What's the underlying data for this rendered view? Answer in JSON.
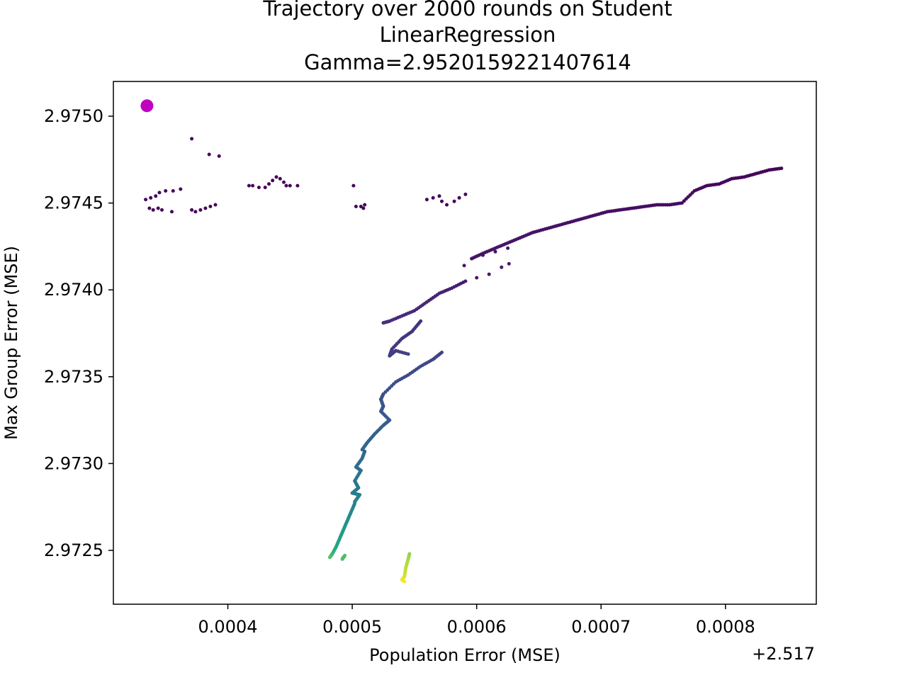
{
  "chart_data": {
    "type": "scatter",
    "title_lines": [
      "Trajectory over 2000 rounds on Student",
      "LinearRegression",
      "Gamma=2.9520159221407614"
    ],
    "xlabel": "Population Error (MSE)",
    "ylabel": "Max Group Error (MSE)",
    "x_offset_label": "+2.517",
    "x_offset": 2.517,
    "x_ticks": [
      0.0004,
      0.0005,
      0.0006,
      0.0007,
      0.0008
    ],
    "x_tick_labels": [
      "0.0004",
      "0.0005",
      "0.0006",
      "0.0007",
      "0.0008"
    ],
    "y_ticks": [
      2.9725,
      2.973,
      2.9735,
      2.974,
      2.9745,
      2.975
    ],
    "y_tick_labels": [
      "2.9725",
      "2.9730",
      "2.9735",
      "2.9740",
      "2.9745",
      "2.9750"
    ],
    "xlim": [
      0.000308,
      0.000873
    ],
    "ylim": [
      2.97219,
      2.9752
    ],
    "x_values_note": "x values are offsets from +2.517 as shown on the axis",
    "start_point": {
      "x": 0.000335,
      "y": 2.97506,
      "color": "#bf00bf"
    },
    "colormap": "viridis",
    "grid": false,
    "legend": "none",
    "segments": [
      {
        "points": [
          [
            0.000334,
            2.97452
          ],
          [
            0.000338,
            2.97453
          ],
          [
            0.000342,
            2.97454
          ],
          [
            0.000345,
            2.97456
          ],
          [
            0.00035,
            2.97457
          ],
          [
            0.000356,
            2.97457
          ],
          [
            0.000362,
            2.97458
          ]
        ],
        "t": [
          0.02,
          0.02
        ]
      },
      {
        "points": [
          [
            0.000337,
            2.97447
          ],
          [
            0.00034,
            2.97446
          ],
          [
            0.000344,
            2.97447
          ],
          [
            0.000347,
            2.97446
          ],
          [
            0.000355,
            2.97445
          ]
        ],
        "t": [
          0.02,
          0.02
        ]
      },
      {
        "points": [
          [
            0.000385,
            2.97478
          ],
          [
            0.000393,
            2.97477
          ],
          [
            0.000371,
            2.97487
          ]
        ],
        "t": [
          0.02,
          0.02
        ]
      },
      {
        "points": [
          [
            0.000371,
            2.97446
          ],
          [
            0.000374,
            2.97445
          ],
          [
            0.000378,
            2.97446
          ],
          [
            0.000382,
            2.97447
          ],
          [
            0.000386,
            2.97448
          ],
          [
            0.00039,
            2.97449
          ]
        ],
        "t": [
          0.02,
          0.02
        ]
      },
      {
        "points": [
          [
            0.000417,
            2.9746
          ],
          [
            0.00042,
            2.9746
          ],
          [
            0.000425,
            2.97459
          ],
          [
            0.00043,
            2.97459
          ],
          [
            0.000433,
            2.97461
          ],
          [
            0.000436,
            2.97463
          ],
          [
            0.000439,
            2.97465
          ],
          [
            0.000442,
            2.97464
          ],
          [
            0.000445,
            2.97462
          ],
          [
            0.000447,
            2.9746
          ],
          [
            0.00045,
            2.9746
          ],
          [
            0.000456,
            2.9746
          ]
        ],
        "t": [
          0.02,
          0.02
        ]
      },
      {
        "points": [
          [
            0.000501,
            2.9746
          ],
          [
            0.000503,
            2.97448
          ],
          [
            0.000507,
            2.97448
          ],
          [
            0.000509,
            2.97447
          ],
          [
            0.00051,
            2.97449
          ]
        ],
        "t": [
          0.02,
          0.02
        ]
      },
      {
        "points": [
          [
            0.00056,
            2.97452
          ],
          [
            0.000565,
            2.97453
          ],
          [
            0.00057,
            2.97454
          ],
          [
            0.000572,
            2.97451
          ],
          [
            0.000576,
            2.97449
          ],
          [
            0.000582,
            2.97451
          ],
          [
            0.000586,
            2.97453
          ],
          [
            0.000591,
            2.97455
          ]
        ],
        "t": [
          0.02,
          0.02
        ]
      },
      {
        "points": [
          [
            0.000845,
            2.9747
          ],
          [
            0.000835,
            2.97469
          ],
          [
            0.000825,
            2.97467
          ],
          [
            0.000815,
            2.97465
          ],
          [
            0.000805,
            2.97464
          ],
          [
            0.000795,
            2.97461
          ],
          [
            0.000785,
            2.9746
          ],
          [
            0.000775,
            2.97457
          ],
          [
            0.000765,
            2.9745
          ],
          [
            0.000755,
            2.97449
          ],
          [
            0.000745,
            2.97449
          ],
          [
            0.000735,
            2.97448
          ],
          [
            0.000725,
            2.97447
          ],
          [
            0.000715,
            2.97446
          ],
          [
            0.000705,
            2.97445
          ],
          [
            0.000695,
            2.97443
          ],
          [
            0.000685,
            2.97441
          ],
          [
            0.000675,
            2.97439
          ],
          [
            0.000665,
            2.97437
          ],
          [
            0.000655,
            2.97435
          ],
          [
            0.000645,
            2.97433
          ],
          [
            0.000635,
            2.9743
          ],
          [
            0.000625,
            2.97427
          ],
          [
            0.000615,
            2.97424
          ],
          [
            0.000605,
            2.97421
          ],
          [
            0.000596,
            2.97418
          ]
        ],
        "t": [
          0.02,
          0.08
        ]
      },
      {
        "points": [
          [
            0.000596,
            2.97418
          ],
          [
            0.000605,
            2.9742
          ],
          [
            0.000615,
            2.97422
          ],
          [
            0.000625,
            2.97424
          ]
        ],
        "t": [
          0.06,
          0.08
        ]
      },
      {
        "points": [
          [
            0.00059,
            2.97414
          ],
          [
            0.0006,
            2.97407
          ],
          [
            0.00061,
            2.97409
          ],
          [
            0.00062,
            2.97413
          ],
          [
            0.000626,
            2.97415
          ]
        ],
        "t": [
          0.08,
          0.1
        ]
      },
      {
        "points": [
          [
            0.000591,
            2.97405
          ],
          [
            0.00058,
            2.97401
          ],
          [
            0.00057,
            2.97398
          ],
          [
            0.00056,
            2.97393
          ],
          [
            0.00055,
            2.97388
          ],
          [
            0.00054,
            2.97385
          ],
          [
            0.00053,
            2.97382
          ],
          [
            0.000525,
            2.97381
          ]
        ],
        "t": [
          0.1,
          0.18
        ]
      },
      {
        "points": [
          [
            0.000555,
            2.97382
          ],
          [
            0.000548,
            2.97376
          ],
          [
            0.00054,
            2.97372
          ],
          [
            0.000532,
            2.97366
          ],
          [
            0.00053,
            2.97362
          ],
          [
            0.000535,
            2.97365
          ],
          [
            0.000545,
            2.97363
          ]
        ],
        "t": [
          0.18,
          0.24
        ]
      },
      {
        "points": [
          [
            0.000572,
            2.97364
          ],
          [
            0.000565,
            2.9736
          ],
          [
            0.000555,
            2.97356
          ],
          [
            0.000545,
            2.97351
          ],
          [
            0.000535,
            2.97347
          ],
          [
            0.000525,
            2.9734
          ],
          [
            0.000523,
            2.97337
          ]
        ],
        "t": [
          0.24,
          0.32
        ]
      },
      {
        "points": [
          [
            0.000523,
            2.97337
          ],
          [
            0.000525,
            2.97333
          ],
          [
            0.000523,
            2.9733
          ],
          [
            0.00053,
            2.97325
          ],
          [
            0.000525,
            2.97322
          ],
          [
            0.000518,
            2.97317
          ],
          [
            0.000512,
            2.97312
          ],
          [
            0.000508,
            2.97308
          ]
        ],
        "t": [
          0.32,
          0.42
        ]
      },
      {
        "points": [
          [
            0.00051,
            2.97307
          ],
          [
            0.000508,
            2.97303
          ],
          [
            0.000503,
            2.97298
          ],
          [
            0.000507,
            2.97296
          ],
          [
            0.000502,
            2.9729
          ],
          [
            0.000505,
            2.97286
          ],
          [
            0.0005,
            2.97283
          ],
          [
            0.000506,
            2.97282
          ],
          [
            0.000502,
            2.97278
          ]
        ],
        "t": [
          0.42,
          0.55
        ]
      },
      {
        "points": [
          [
            0.000502,
            2.97277
          ],
          [
            0.000499,
            2.97272
          ],
          [
            0.000496,
            2.97267
          ],
          [
            0.000493,
            2.97262
          ],
          [
            0.00049,
            2.97257
          ],
          [
            0.000487,
            2.97252
          ],
          [
            0.000484,
            2.97248
          ],
          [
            0.000482,
            2.97246
          ]
        ],
        "t": [
          0.55,
          0.82
        ]
      },
      {
        "points": [
          [
            0.000493,
            2.97246
          ],
          [
            0.000492,
            2.97245
          ],
          [
            0.000494,
            2.97247
          ]
        ],
        "t": [
          0.8,
          0.82
        ]
      },
      {
        "points": [
          [
            0.000546,
            2.97248
          ],
          [
            0.000545,
            2.97245
          ],
          [
            0.000543,
            2.9724
          ],
          [
            0.000542,
            2.97235
          ],
          [
            0.00054,
            2.97233
          ],
          [
            0.000542,
            2.97232
          ]
        ],
        "t": [
          0.9,
          1.0
        ]
      }
    ]
  }
}
